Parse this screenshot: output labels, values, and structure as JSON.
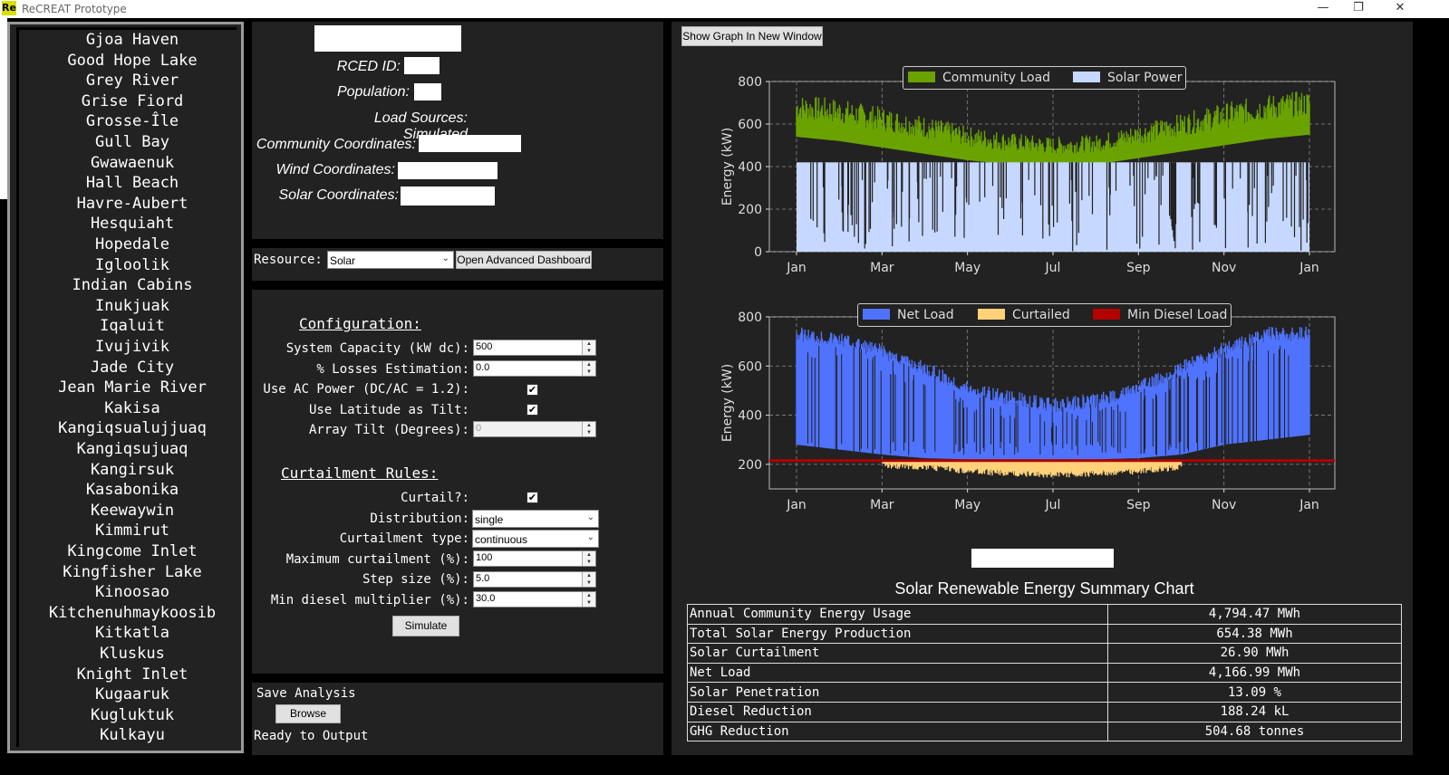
{
  "window": {
    "title": "ReCREAT Prototype",
    "icon_text": "Re"
  },
  "communities": [
    "Gjoa Haven",
    "Good Hope Lake",
    "Grey River",
    "Grise Fiord",
    "Grosse-Île",
    "Gull Bay",
    "Gwawaenuk",
    "Hall Beach",
    "Havre-Aubert",
    "Hesquiaht",
    "Hopedale",
    "Igloolik",
    "Indian Cabins",
    "Inukjuak",
    "Iqaluit",
    "Ivujivik",
    "Jade City",
    "Jean Marie River",
    "Kakisa",
    "Kangiqsualujjuaq",
    "Kangiqsujuaq",
    "Kangirsuk",
    "Kasabonika",
    "Keewaywin",
    "Kimmirut",
    "Kingcome Inlet",
    "Kingfisher Lake",
    "Kinoosao",
    "Kitchenuhmaykoosib",
    "Kitkatla",
    "Kluskus",
    "Knight Inlet",
    "Kugaaruk",
    "Kugluktuk",
    "Kulkayu"
  ],
  "info": {
    "rced_id_label": "RCED ID:",
    "population_label": "Population:",
    "load_sources": "Load Sources: Simulated",
    "community_coords_label": "Community Coordinates:",
    "wind_coords_label": "Wind Coordinates:",
    "solar_coords_label": "Solar Coordinates:"
  },
  "resource": {
    "label": "Resource:",
    "selected": "Solar",
    "advanced_button": "Open Advanced Dashboard"
  },
  "config": {
    "heading": "Configuration:",
    "system_capacity_label": "System Capacity (kW dc):",
    "system_capacity_value": "500",
    "losses_label": "% Losses Estimation:",
    "losses_value": "0.0",
    "ac_power_label": "Use AC Power (DC/AC = 1.2):",
    "ac_power_checked": "✔",
    "lat_tilt_label": "Use Latitude as Tilt:",
    "lat_tilt_checked": "✔",
    "array_tilt_label": "Array Tilt (Degrees):",
    "array_tilt_value": "0"
  },
  "curtailment": {
    "heading": "Curtailment Rules:",
    "curtail_label": "Curtail?:",
    "curtail_checked": "✔",
    "distribution_label": "Distribution:",
    "distribution_value": "single",
    "type_label": "Curtailment type:",
    "type_value": "continuous",
    "max_label": "Maximum curtailment (%):",
    "max_value": "100",
    "step_label": "Step size (%):",
    "step_value": "5.0",
    "min_diesel_label": "Min diesel multiplier (%):",
    "min_diesel_value": "30.0",
    "simulate_button": "Simulate"
  },
  "save": {
    "title": "Save Analysis",
    "browse_button": "Browse",
    "status": "Ready to Output"
  },
  "graph_button": "Show Graph In New Window",
  "chart_data": [
    {
      "type": "area",
      "ylabel": "Energy (kW)",
      "ylim": [
        0,
        800
      ],
      "yticks": [
        0,
        200,
        400,
        600,
        800
      ],
      "xticks": [
        "Jan",
        "Mar",
        "May",
        "Jul",
        "Sep",
        "Nov",
        "Jan"
      ],
      "grid": true,
      "legend_position": "top-center",
      "series": [
        {
          "name": "Community Load",
          "color": "#6aa300",
          "x_months": [
            0,
            1,
            2,
            3,
            4,
            5,
            6,
            7,
            8,
            9,
            10,
            11,
            12
          ],
          "values_low": [
            540,
            520,
            490,
            460,
            430,
            410,
            400,
            410,
            440,
            470,
            500,
            530,
            550
          ],
          "values_high": [
            740,
            720,
            680,
            640,
            590,
            560,
            540,
            550,
            600,
            650,
            700,
            740,
            760
          ]
        },
        {
          "name": "Solar Power",
          "color": "#c6d8ff",
          "x_months": [
            0,
            12
          ],
          "values": [
            420,
            420
          ]
        }
      ]
    },
    {
      "type": "area",
      "ylabel": "Energy (kW)",
      "ylim": [
        100,
        800
      ],
      "yticks": [
        200,
        400,
        600,
        800
      ],
      "xticks": [
        "Jan",
        "Mar",
        "May",
        "Jul",
        "Sep",
        "Nov",
        "Jan"
      ],
      "grid": true,
      "legend_position": "top-center",
      "series": [
        {
          "name": "Net Load",
          "color": "#4f73ff",
          "x_months": [
            0,
            1,
            2,
            3,
            4,
            5,
            6,
            7,
            8,
            9,
            10,
            11,
            12
          ],
          "values_low": [
            280,
            260,
            240,
            225,
            220,
            220,
            220,
            220,
            225,
            240,
            280,
            300,
            320
          ],
          "values_high": [
            760,
            740,
            690,
            620,
            540,
            500,
            470,
            490,
            540,
            620,
            700,
            760,
            760
          ]
        },
        {
          "name": "Curtailed",
          "color": "#ffd27a",
          "x_months": [
            2,
            3,
            4,
            5,
            6,
            7,
            8,
            9
          ],
          "values": [
            210,
            200,
            185,
            175,
            170,
            175,
            185,
            200
          ]
        },
        {
          "name": "Min Diesel Load",
          "color": "#b30000",
          "x_months": [
            0,
            12
          ],
          "values": [
            215,
            215
          ]
        }
      ]
    }
  ],
  "summary": {
    "title": "Solar Renewable Energy Summary Chart",
    "rows": [
      {
        "label": "Annual Community Energy Usage",
        "value": "4,794.47 MWh"
      },
      {
        "label": "Total Solar Energy Production",
        "value": "654.38 MWh"
      },
      {
        "label": "Solar Curtailment",
        "value": "26.90 MWh"
      },
      {
        "label": "Net Load",
        "value": "4,166.99 MWh"
      },
      {
        "label": "Solar Penetration",
        "value": "13.09 %"
      },
      {
        "label": "Diesel Reduction",
        "value": "188.24 kL"
      },
      {
        "label": "GHG Reduction",
        "value": "504.68 tonnes"
      }
    ]
  }
}
